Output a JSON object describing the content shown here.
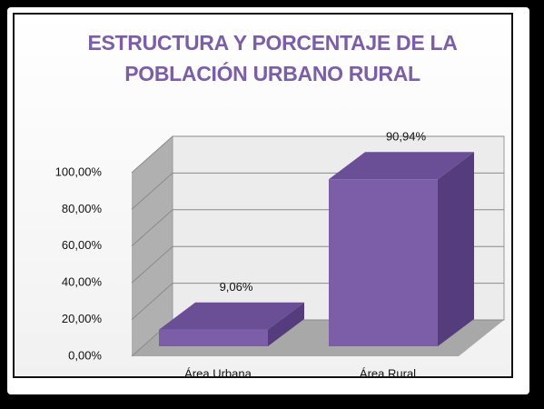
{
  "chart_data": {
    "type": "bar3d",
    "title": "ESTRUCTURA Y PORCENTAJE DE LA POBLACIÓN URBANO RURAL",
    "categories": [
      "Área Urbana",
      "Área Rural"
    ],
    "values": [
      9.06,
      90.94
    ],
    "value_labels": [
      "9,06%",
      "90,94%"
    ],
    "color": "#7b5ea7",
    "ylim": [
      0,
      100
    ],
    "yticks": [
      {
        "value": 0,
        "label": "0,00%"
      },
      {
        "value": 20,
        "label": "20,00%"
      },
      {
        "value": 40,
        "label": "40,00%"
      },
      {
        "value": 60,
        "label": "60,00%"
      },
      {
        "value": 80,
        "label": "80,00%"
      },
      {
        "value": 100,
        "label": "100,00%"
      }
    ],
    "grid": true
  }
}
